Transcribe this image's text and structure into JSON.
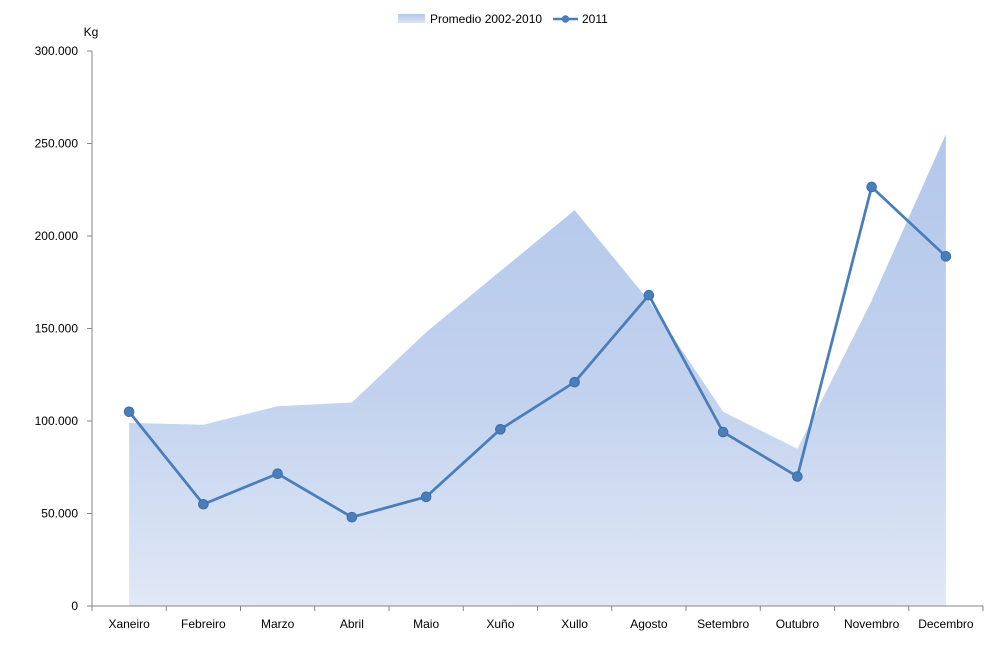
{
  "chart_data": {
    "type": "line",
    "ylabel": "Kg",
    "categories": [
      "Xaneiro",
      "Febreiro",
      "Marzo",
      "Abril",
      "Maio",
      "Xuño",
      "Xullo",
      "Agosto",
      "Setembro",
      "Outubro",
      "Novembro",
      "Decembro"
    ],
    "ylim": [
      0,
      300000
    ],
    "yticks": [
      0,
      50000,
      100000,
      150000,
      200000,
      250000,
      300000
    ],
    "ytick_labels": [
      "0",
      "50.000",
      "100.000",
      "150.000",
      "200.000",
      "250.000",
      "300.000"
    ],
    "grid": false,
    "legend_position": "top-center",
    "series": [
      {
        "name": "Promedio 2002-2010",
        "kind": "area",
        "color": "#b8cbe9",
        "values": [
          99000,
          98000,
          108000,
          110000,
          148000,
          181000,
          214000,
          165000,
          105000,
          85000,
          165000,
          255000
        ]
      },
      {
        "name": "2011",
        "kind": "line",
        "color": "#4a7ebb",
        "values": [
          105000,
          55000,
          71500,
          48000,
          59000,
          95500,
          121000,
          168000,
          94000,
          70000,
          226500,
          189000
        ]
      }
    ]
  }
}
